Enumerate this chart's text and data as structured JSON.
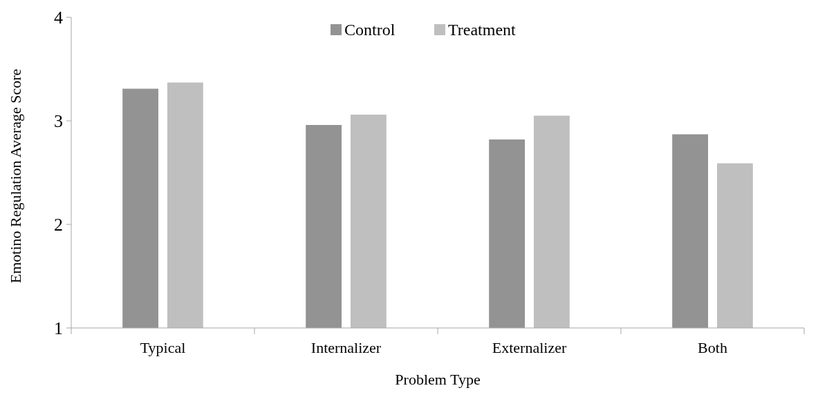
{
  "chart_data": {
    "type": "bar",
    "xlabel": "Problem Type",
    "ylabel": "Emotino Regulation Average Score",
    "categories": [
      "Typical",
      "Internalizer",
      "Externalizer",
      "Both"
    ],
    "series": [
      {
        "name": "Control",
        "color": "#939393",
        "values": [
          3.31,
          2.96,
          2.82,
          2.87
        ]
      },
      {
        "name": "Treatment",
        "color": "#bfbfbf",
        "values": [
          3.37,
          3.06,
          3.05,
          2.59
        ]
      }
    ],
    "ylim": [
      1,
      4
    ],
    "yticks": [
      1,
      2,
      3,
      4
    ],
    "legend": "top"
  }
}
